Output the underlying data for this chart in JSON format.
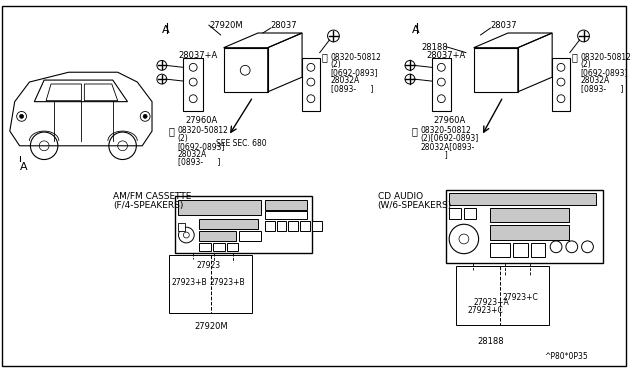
{
  "bg_color": "#ffffff",
  "diagram_label": "^P80*0P35",
  "amfm_label1": "AM/FM CASSETTE",
  "amfm_label2": "(F/4-SPEAKERS)",
  "cd_label1": "CD AUDIO",
  "cd_label2": "(W/6-SPEAKERS)",
  "see_sec": "SEE SEC. 680"
}
